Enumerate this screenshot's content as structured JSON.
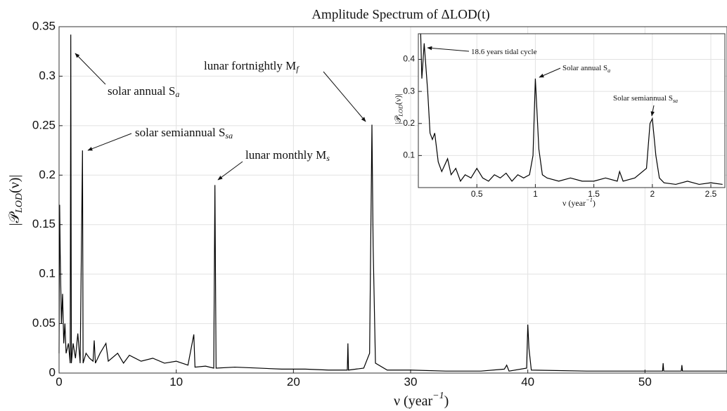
{
  "chart_data": [
    {
      "type": "line",
      "title": "Amplitude Spectrum of ΔLOD(t)",
      "xlabel": {
        "pre": "ν (year",
        "sup": "−1",
        "post": ")"
      },
      "ylabel": {
        "pre": "|𝒫",
        "sub": "LOD",
        "post": "(ν)|"
      },
      "color": "#000000",
      "grid": true,
      "xlim": [
        0,
        57
      ],
      "ylim": [
        0,
        0.35
      ],
      "xticks": [
        0,
        10,
        20,
        30,
        40,
        50
      ],
      "yticks": [
        0,
        0.05,
        0.1,
        0.15,
        0.2,
        0.25,
        0.3,
        0.35
      ],
      "x": [
        0,
        0.05,
        0.1,
        0.2,
        0.3,
        0.4,
        0.5,
        0.6,
        0.8,
        0.95,
        1.0,
        1.05,
        1.2,
        1.4,
        1.6,
        1.8,
        2.0,
        2.05,
        2.3,
        2.6,
        2.9,
        3.0,
        3.1,
        3.5,
        4.0,
        4.2,
        5,
        5.5,
        6,
        7,
        8,
        9,
        10,
        11,
        11.5,
        11.6,
        12.5,
        13.2,
        13.3,
        13.4,
        15,
        17,
        19,
        21,
        23,
        24.6,
        24.65,
        24.7,
        26,
        26.5,
        26.7,
        26.8,
        27,
        28,
        30,
        33,
        36,
        38,
        38.2,
        38.4,
        39.9,
        40.0,
        40.1,
        40.3,
        45,
        50,
        51.5,
        51.55,
        51.6,
        53.1,
        53.15,
        53.2,
        57
      ],
      "values": [
        0.02,
        0.17,
        0.12,
        0.05,
        0.08,
        0.03,
        0.05,
        0.02,
        0.03,
        0.01,
        0.342,
        0.01,
        0.03,
        0.015,
        0.04,
        0.01,
        0.225,
        0.01,
        0.02,
        0.015,
        0.012,
        0.033,
        0.01,
        0.02,
        0.03,
        0.012,
        0.02,
        0.01,
        0.018,
        0.012,
        0.015,
        0.01,
        0.012,
        0.008,
        0.039,
        0.006,
        0.007,
        0.005,
        0.19,
        0.005,
        0.006,
        0.005,
        0.004,
        0.004,
        0.003,
        0.003,
        0.03,
        0.003,
        0.005,
        0.02,
        0.251,
        0.13,
        0.01,
        0.003,
        0.003,
        0.002,
        0.002,
        0.004,
        0.008,
        0.002,
        0.005,
        0.049,
        0.025,
        0.003,
        0.002,
        0.002,
        0.002,
        0.01,
        0.002,
        0.002,
        0.008,
        0.002,
        0.002
      ],
      "annotations": [
        {
          "text": "solar annual S",
          "sub": "a"
        },
        {
          "text": "solar semiannual S",
          "sub": "sa"
        },
        {
          "text": "lunar monthly M",
          "sub": "s"
        },
        {
          "text": "lunar fortnightly M",
          "sub": "f"
        }
      ]
    },
    {
      "type": "line",
      "xlabel": {
        "pre": "ν (year",
        "sup": "−1",
        "post": ")"
      },
      "ylabel": {
        "pre": "|𝒫",
        "sub": "LOD",
        "post": "(ν)|"
      },
      "color": "#000000",
      "grid": true,
      "xlim": [
        0,
        2.62
      ],
      "ylim": [
        0,
        0.48
      ],
      "xticks": [
        0.5,
        1,
        1.5,
        2,
        2.5
      ],
      "yticks": [
        0.1,
        0.2,
        0.3,
        0.4
      ],
      "x": [
        0.02,
        0.03,
        0.05,
        0.08,
        0.1,
        0.12,
        0.14,
        0.17,
        0.2,
        0.25,
        0.28,
        0.32,
        0.36,
        0.4,
        0.45,
        0.5,
        0.55,
        0.6,
        0.65,
        0.7,
        0.75,
        0.8,
        0.85,
        0.9,
        0.95,
        0.98,
        1.0,
        1.03,
        1.06,
        1.1,
        1.2,
        1.3,
        1.4,
        1.5,
        1.6,
        1.7,
        1.72,
        1.75,
        1.85,
        1.95,
        1.98,
        2.0,
        2.03,
        2.06,
        2.1,
        2.2,
        2.3,
        2.4,
        2.5,
        2.6
      ],
      "values": [
        0.48,
        0.34,
        0.45,
        0.3,
        0.17,
        0.15,
        0.17,
        0.08,
        0.05,
        0.09,
        0.04,
        0.06,
        0.02,
        0.04,
        0.03,
        0.06,
        0.03,
        0.02,
        0.04,
        0.03,
        0.045,
        0.02,
        0.04,
        0.03,
        0.04,
        0.1,
        0.34,
        0.12,
        0.04,
        0.03,
        0.02,
        0.03,
        0.02,
        0.02,
        0.03,
        0.02,
        0.05,
        0.02,
        0.03,
        0.06,
        0.2,
        0.215,
        0.1,
        0.03,
        0.015,
        0.01,
        0.02,
        0.01,
        0.015,
        0.01
      ],
      "annotations": [
        {
          "text": "18.6 years tidal cycle"
        },
        {
          "text": "Solar annual S",
          "sub": "a"
        },
        {
          "text": "Solar semiannual S",
          "sub": "sa"
        }
      ]
    }
  ]
}
